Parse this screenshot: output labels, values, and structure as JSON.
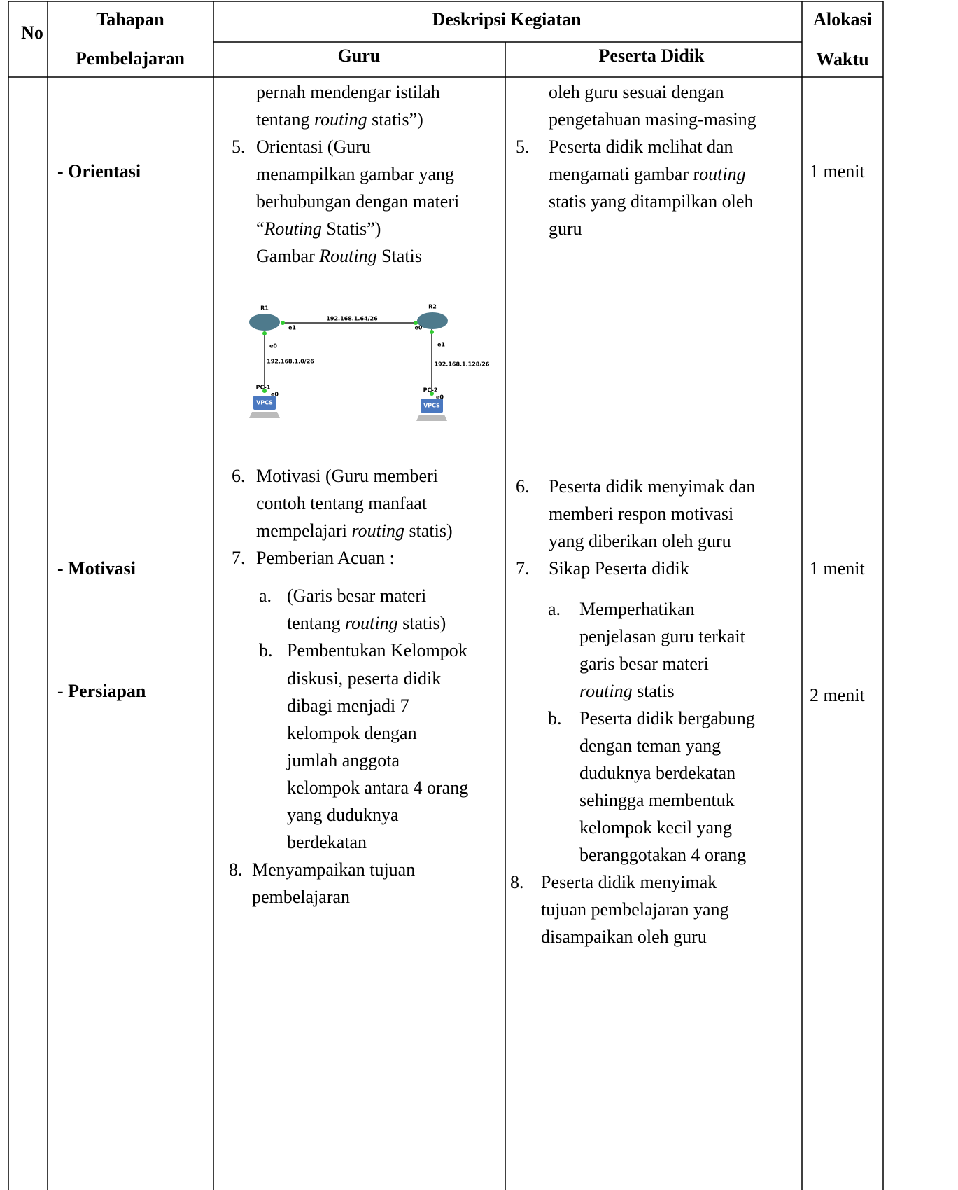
{
  "header": {
    "no": "No",
    "tahapan_1": "Tahapan",
    "tahapan_2": "Pembelajaran",
    "deskripsi": "Deskripsi Kegiatan",
    "guru": "Guru",
    "peserta": "Peserta Didik",
    "alokasi_1": "Alokasi",
    "alokasi_2": "Waktu"
  },
  "tahapan": [
    "- Orientasi",
    "- Motivasi",
    "- Persiapan"
  ],
  "waktu": [
    "1 menit",
    "1 menit",
    "2 menit"
  ],
  "guru": {
    "continuation": [
      "pernah mendengar istilah",
      [
        "tentang ",
        {
          "italic": "routing"
        },
        " statis”)"
      ]
    ],
    "items": [
      {
        "number": "5.",
        "lines": [
          "Orientasi (Guru",
          "menampilkan gambar yang",
          "berhubungan dengan materi",
          [
            "“",
            {
              "italic": "Routing"
            },
            " Statis”)"
          ],
          [
            "Gambar ",
            {
              "italic": "Routing"
            },
            " Statis"
          ]
        ]
      },
      {
        "number": "6.",
        "lines": [
          "Motivasi (Guru memberi",
          "contoh tentang manfaat",
          [
            "mempelajari ",
            {
              "italic": "routing"
            },
            " statis)"
          ]
        ]
      },
      {
        "number": "7.",
        "lines": [
          "Pemberian Acuan :"
        ],
        "subitems": [
          {
            "letter": "a.",
            "lines": [
              "(Garis besar materi",
              [
                "tentang ",
                {
                  "italic": "routing"
                },
                " statis)"
              ]
            ]
          },
          {
            "letter": "b.",
            "lines": [
              "Pembentukan Kelompok",
              "diskusi, peserta didik",
              "dibagi menjadi 7",
              "kelompok dengan",
              "jumlah anggota",
              "kelompok antara 4 orang",
              "yang duduknya",
              "berdekatan"
            ]
          }
        ]
      },
      {
        "number": "8.",
        "lines": [
          "Menyampaikan tujuan",
          "pembelajaran"
        ]
      }
    ]
  },
  "peserta": {
    "continuation": [
      "oleh guru sesuai dengan",
      "pengetahuan masing-masing"
    ],
    "items": [
      {
        "number": "5.",
        "lines": [
          "Peserta didik melihat dan",
          [
            "mengamati gambar r",
            {
              "italic": "outing"
            }
          ],
          "statis yang ditampilkan oleh",
          "guru"
        ]
      },
      {
        "number": "6.",
        "lines": [
          "Peserta didik menyimak dan",
          "memberi respon motivasi",
          "yang diberikan oleh guru"
        ]
      },
      {
        "number": "7.",
        "lines": [
          "Sikap Peserta didik"
        ],
        "subitems": [
          {
            "letter": "a.",
            "lines": [
              "Memperhatikan",
              "penjelasan guru terkait",
              "garis besar materi",
              [
                {
                  "italic": "routing"
                },
                " statis"
              ]
            ]
          },
          {
            "letter": "b.",
            "lines": [
              "Peserta didik bergabung",
              "dengan teman yang",
              "duduknya berdekatan",
              "sehingga membentuk",
              "kelompok kecil yang",
              "beranggotakan 4 orang"
            ]
          }
        ]
      },
      {
        "number": "8.",
        "lines": [
          "Peserta didik menyimak",
          "tujuan pembelajaran yang",
          "disampaikan oleh guru"
        ]
      }
    ]
  },
  "diagram": {
    "labels": [
      "R1",
      "R2",
      "192.168.1.64/26",
      "e1",
      "e0",
      "e0",
      "192.168.1.0/26",
      "e1",
      "192.168.1.128/26",
      "PC-1",
      "e0",
      "PC-2",
      "e0",
      "VPCS",
      "VPCS"
    ]
  }
}
